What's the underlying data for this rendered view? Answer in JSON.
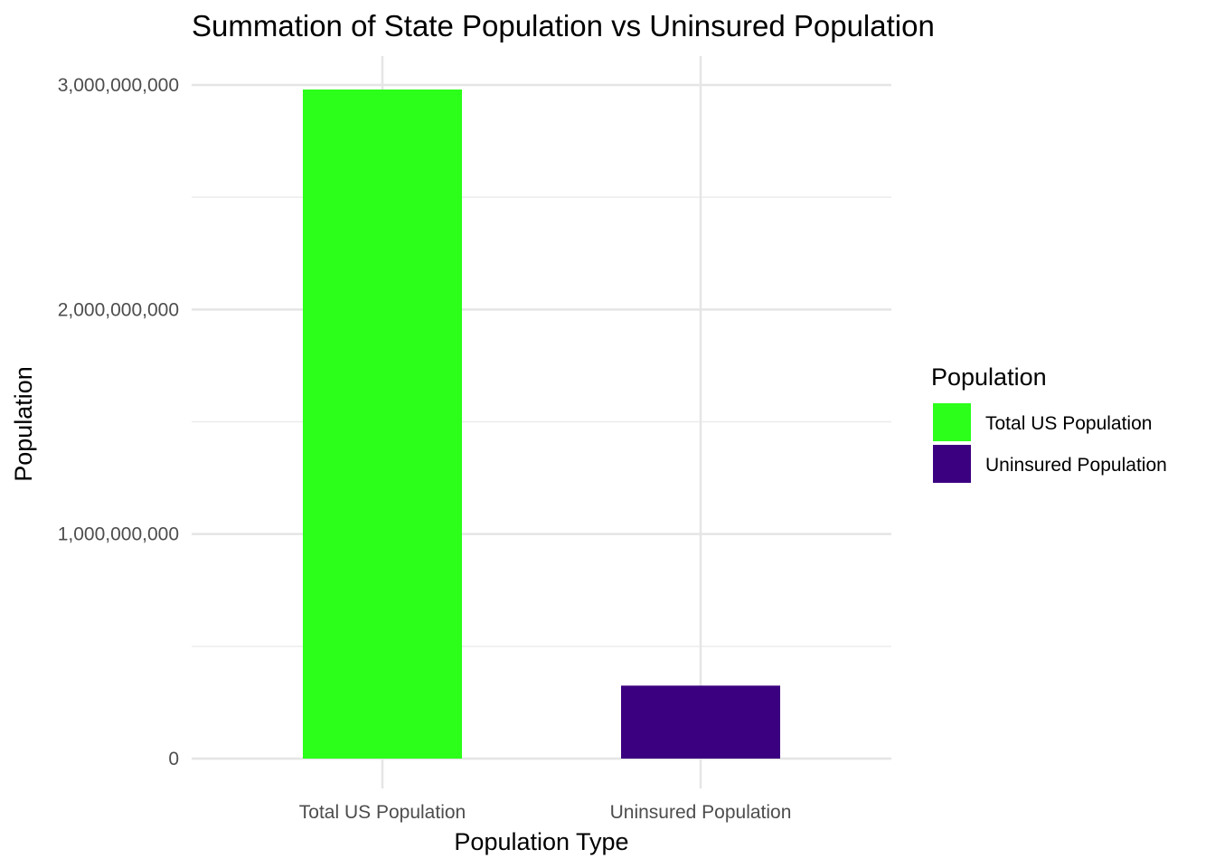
{
  "chart_data": {
    "type": "bar",
    "title": "Summation of State Population vs Uninsured Population",
    "xlabel": "Population Type",
    "ylabel": "Population",
    "categories": [
      "Total US Population",
      "Uninsured Population"
    ],
    "values": [
      2980000000,
      325000000
    ],
    "colors": [
      "#2cff1a",
      "#3b0080"
    ],
    "ylim": [
      0,
      3000000000
    ],
    "yticks": [
      0,
      1000000000,
      2000000000,
      3000000000
    ],
    "ytick_labels": [
      "0",
      "1,000,000,000",
      "2,000,000,000",
      "3,000,000,000"
    ],
    "grid": true,
    "legend": {
      "title": "Population",
      "position": "right",
      "entries": [
        "Total US Population",
        "Uninsured Population"
      ]
    }
  }
}
